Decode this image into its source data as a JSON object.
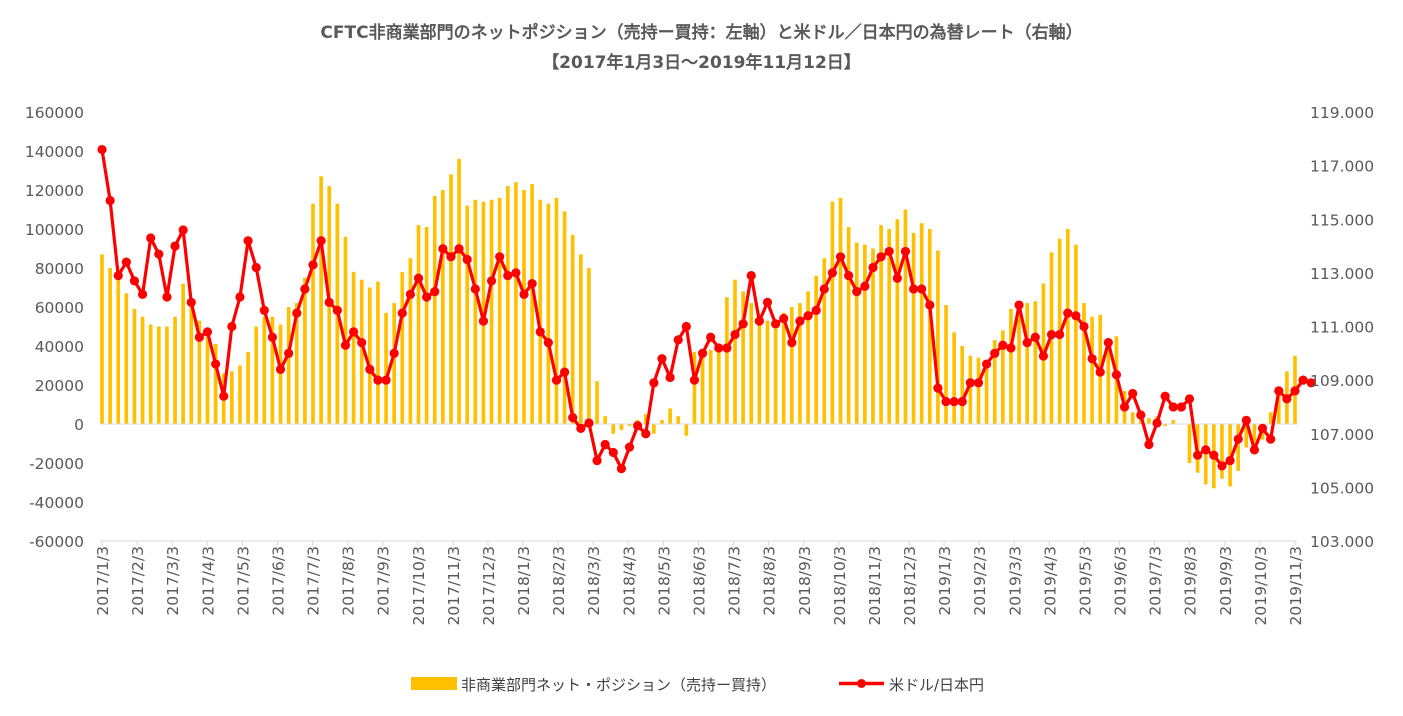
{
  "chart_data": {
    "type": "bar+line",
    "title": "CFTC非商業部門のネットポジション（売持ー買持：左軸）と米ドル／日本円の為替レート（右軸）",
    "subtitle": "【2017年1月3日～2019年11月12日】",
    "legend_position": "bottom",
    "grid": false,
    "y_left": {
      "range": [
        -60000,
        160000
      ],
      "ticks": [
        "-60000",
        "-40000",
        "-20000",
        "0",
        "20000",
        "40000",
        "60000",
        "80000",
        "100000",
        "120000",
        "140000",
        "160000"
      ]
    },
    "y_right": {
      "range": [
        103,
        119
      ],
      "ticks": [
        "103.000",
        "105.000",
        "107.000",
        "109.000",
        "111.000",
        "113.000",
        "115.000",
        "117.000",
        "119.000"
      ]
    },
    "x_ticks": [
      "2017/1/3",
      "2017/2/3",
      "2017/3/3",
      "2017/4/3",
      "2017/5/3",
      "2017/6/3",
      "2017/7/3",
      "2017/8/3",
      "2017/9/3",
      "2017/10/3",
      "2017/11/3",
      "2017/12/3",
      "2018/1/3",
      "2018/2/3",
      "2018/3/3",
      "2018/4/3",
      "2018/5/3",
      "2018/6/3",
      "2018/7/3",
      "2018/8/3",
      "2018/9/3",
      "2018/10/3",
      "2018/11/3",
      "2018/12/3",
      "2019/1/3",
      "2019/2/3",
      "2019/3/3",
      "2019/4/3",
      "2019/5/3",
      "2019/6/3",
      "2019/7/3",
      "2019/8/3",
      "2019/9/3",
      "2019/10/3",
      "2019/11/3"
    ],
    "series": [
      {
        "name": "非商業部門ネット・ポジション（売持ー買持）",
        "type": "bar",
        "axis": "left",
        "color": "#FFC000",
        "values": [
          87000,
          80000,
          74000,
          67000,
          59000,
          55000,
          51000,
          50000,
          50000,
          55000,
          72000,
          60000,
          53000,
          45000,
          41000,
          26000,
          27000,
          30000,
          37000,
          50000,
          55000,
          55000,
          51000,
          60000,
          62000,
          75000,
          113000,
          127000,
          122000,
          113000,
          96000,
          78000,
          74000,
          70000,
          73000,
          57000,
          62000,
          78000,
          85000,
          102000,
          101000,
          117000,
          120000,
          128000,
          136000,
          112000,
          115000,
          114000,
          115000,
          116000,
          122000,
          124000,
          120000,
          123000,
          115000,
          113000,
          116000,
          109000,
          97000,
          87000,
          80000,
          22000,
          4000,
          -5000,
          -3000,
          -1000,
          2000,
          5000,
          -5000,
          2000,
          8000,
          4000,
          -6000,
          37000,
          38000,
          38000,
          40000,
          65000,
          74000,
          68000,
          62000,
          56000,
          53000,
          52000,
          57000,
          60000,
          62000,
          68000,
          76000,
          85000,
          114000,
          116000,
          101000,
          93000,
          92000,
          90000,
          102000,
          100000,
          105000,
          110000,
          98000,
          103000,
          100000,
          89000,
          61000,
          47000,
          40000,
          35000,
          34000,
          31000,
          43000,
          48000,
          59000,
          59000,
          62000,
          63000,
          72000,
          88000,
          95000,
          100000,
          92000,
          62000,
          55000,
          56000,
          44000,
          45000,
          17000,
          6000,
          3000,
          3000,
          4000,
          -1000,
          2000,
          0,
          -20000,
          -25000,
          -31000,
          -33000,
          -28000,
          -32000,
          -24000,
          -12000,
          -14000,
          -8000,
          6000,
          18000,
          27000,
          35000
        ]
      },
      {
        "name": "米ドル/日本円",
        "type": "line",
        "axis": "right",
        "color": "#FF0000",
        "values": [
          117.6,
          115.7,
          112.9,
          113.4,
          112.7,
          112.2,
          114.3,
          113.7,
          112.1,
          114.0,
          114.6,
          111.9,
          110.6,
          110.8,
          109.6,
          108.4,
          111.0,
          112.1,
          114.2,
          113.2,
          111.6,
          110.6,
          109.4,
          110.0,
          111.5,
          112.4,
          113.3,
          114.2,
          111.9,
          111.6,
          110.3,
          110.8,
          110.4,
          109.4,
          109.0,
          109.0,
          110.0,
          111.5,
          112.2,
          112.8,
          112.1,
          112.3,
          113.9,
          113.6,
          113.9,
          113.5,
          112.4,
          111.2,
          112.7,
          113.6,
          112.9,
          113.0,
          112.2,
          112.6,
          110.8,
          110.4,
          109.0,
          109.3,
          107.6,
          107.2,
          107.4,
          106.0,
          106.6,
          106.3,
          105.7,
          106.5,
          107.3,
          107.0,
          108.9,
          109.8,
          109.1,
          110.5,
          111.0,
          109.0,
          110.0,
          110.6,
          110.2,
          110.2,
          110.7,
          111.1,
          112.9,
          111.2,
          111.9,
          111.1,
          111.3,
          110.4,
          111.2,
          111.4,
          111.6,
          112.4,
          113.0,
          113.6,
          112.9,
          112.3,
          112.5,
          113.2,
          113.6,
          113.8,
          112.8,
          113.8,
          112.4,
          112.4,
          111.8,
          108.7,
          108.2,
          108.2,
          108.2,
          108.9,
          108.9,
          109.6,
          110.0,
          110.3,
          110.2,
          111.8,
          110.4,
          110.6,
          109.9,
          110.7,
          110.7,
          111.5,
          111.4,
          111.0,
          109.8,
          109.3,
          110.4,
          109.2,
          108.0,
          108.5,
          107.7,
          106.6,
          107.4,
          108.4,
          108.0,
          108.0,
          108.3,
          106.2,
          106.4,
          106.2,
          105.8,
          106.0,
          106.8,
          107.5,
          106.4,
          107.2,
          106.8,
          108.6,
          108.3,
          108.6,
          109.0,
          108.9
        ]
      }
    ]
  }
}
